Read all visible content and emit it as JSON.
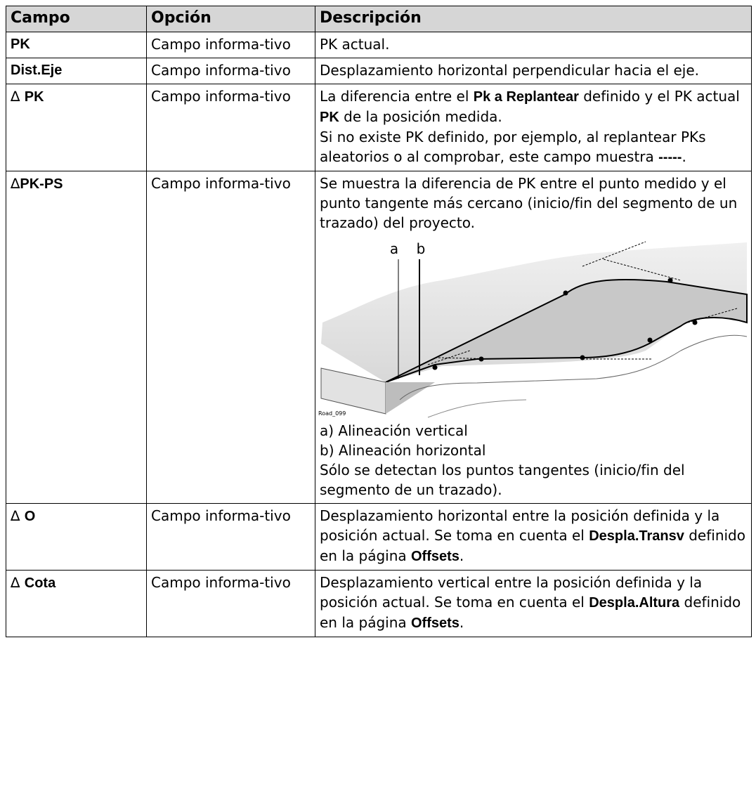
{
  "table": {
    "header": [
      "Campo",
      "Opción",
      "Descripción"
    ],
    "rows": [
      {
        "field": [
          {
            "text": "PK",
            "bold": true
          }
        ],
        "option": "Campo informa-tivo",
        "description": [
          {
            "runs": [
              {
                "text": "PK actual.",
                "bold": false
              }
            ]
          }
        ]
      },
      {
        "field": [
          {
            "text": "Dist.Eje",
            "bold": true
          }
        ],
        "option": "Campo informa-tivo",
        "description": [
          {
            "runs": [
              {
                "text": "Desplazamiento horizontal perpendicular hacia el eje.",
                "bold": false
              }
            ]
          }
        ]
      },
      {
        "field": [
          {
            "text": "∆ ",
            "bold": false
          },
          {
            "text": "PK",
            "bold": true
          }
        ],
        "option": "Campo informa-tivo",
        "description": [
          {
            "runs": [
              {
                "text": "La diferencia entre el ",
                "bold": false
              },
              {
                "text": "Pk a Replantear",
                "bold": true
              },
              {
                "text": " definido y el PK actual ",
                "bold": false
              },
              {
                "text": "PK",
                "bold": true
              },
              {
                "text": " de la posición medida.",
                "bold": false
              }
            ]
          },
          {
            "runs": [
              {
                "text": "Si no existe PK definido, por ejemplo, al replantear PKs aleatorios o al comprobar, este campo muestra ",
                "bold": false
              },
              {
                "text": "-----",
                "bold": true
              },
              {
                "text": ".",
                "bold": false
              }
            ]
          }
        ]
      },
      {
        "field": [
          {
            "text": "∆",
            "bold": false
          },
          {
            "text": "PK-PS",
            "bold": true
          }
        ],
        "option": "Campo informa-tivo",
        "description": [
          {
            "runs": [
              {
                "text": "Se muestra la diferencia de PK entre el punto medido y el punto tangente más cercano (inicio/fin del segmento de un trazado) del proyecto.",
                "bold": false
              }
            ]
          },
          {
            "figure": {
              "labels": [
                "a",
                "b"
              ],
              "caption": "Road_099"
            }
          },
          {
            "runs": [
              {
                "text": "a) Alineación vertical",
                "bold": false
              }
            ]
          },
          {
            "runs": [
              {
                "text": "b) Alineación horizontal",
                "bold": false
              }
            ]
          },
          {
            "runs": [
              {
                "text": "Sólo se detectan los puntos tangentes (inicio/fin del segmento de un trazado).",
                "bold": false
              }
            ]
          }
        ]
      },
      {
        "field": [
          {
            "text": "∆ ",
            "bold": false
          },
          {
            "text": "O",
            "bold": true
          }
        ],
        "option": "Campo informa-tivo",
        "description": [
          {
            "runs": [
              {
                "text": "Desplazamiento horizontal entre la posición definida y la posición actual. Se toma en cuenta el ",
                "bold": false
              },
              {
                "text": "Despla.Transv",
                "bold": true
              },
              {
                "text": " definido en la página ",
                "bold": false
              },
              {
                "text": "Offsets",
                "bold": true
              },
              {
                "text": ".",
                "bold": false
              }
            ]
          }
        ]
      },
      {
        "field": [
          {
            "text": "∆ ",
            "bold": false
          },
          {
            "text": "Cota",
            "bold": true
          }
        ],
        "option": "Campo informa-tivo",
        "description": [
          {
            "runs": [
              {
                "text": "Desplazamiento vertical entre la posición definida y la posición actual. Se toma en cuenta el ",
                "bold": false
              },
              {
                "text": "Despla.Altura",
                "bold": true
              },
              {
                "text": " definido en la página ",
                "bold": false
              },
              {
                "text": "Offsets",
                "bold": true
              },
              {
                "text": ".",
                "bold": false
              }
            ]
          }
        ]
      }
    ]
  }
}
